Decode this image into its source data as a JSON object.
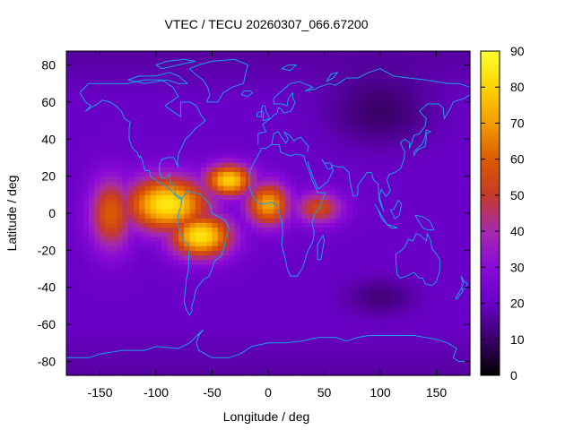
{
  "chart_data": {
    "type": "heatmap",
    "title": "VTEC / TECU 20260307_066.67200",
    "xlabel": "Longitude / deg",
    "ylabel": "Latitude / deg",
    "xlim": [
      -180,
      180
    ],
    "ylim": [
      -87.5,
      87.5
    ],
    "x_ticks": [
      -150,
      -100,
      -50,
      0,
      50,
      100,
      150
    ],
    "y_ticks": [
      -80,
      -60,
      -40,
      -20,
      0,
      20,
      40,
      60,
      80
    ],
    "colorbar": {
      "range": [
        0,
        90
      ],
      "ticks": [
        0,
        10,
        20,
        30,
        40,
        50,
        60,
        70,
        80,
        90
      ],
      "colormap": [
        "#000000",
        "#3a0068",
        "#6a00c8",
        "#8a0ad8",
        "#a52ab0",
        "#c63a28",
        "#dd5a00",
        "#f39c00",
        "#ffd400",
        "#ffff30"
      ]
    },
    "cell_deg": {
      "lon": 5,
      "lat": 2.5
    },
    "features": [
      {
        "name": "equatorial-anomaly-crest-americas",
        "lon": -90,
        "lat": 5,
        "peak_tecu": 85,
        "spread_lon": 38,
        "spread_lat": 15
      },
      {
        "name": "equatorial-anomaly-crest-south-america",
        "lon": -60,
        "lat": -12,
        "peak_tecu": 84,
        "spread_lon": 28,
        "spread_lat": 12
      },
      {
        "name": "equatorial-anomaly-crest-atlantic",
        "lon": -35,
        "lat": 18,
        "peak_tecu": 80,
        "spread_lon": 22,
        "spread_lat": 9
      },
      {
        "name": "west-africa-extension",
        "lon": 0,
        "lat": 5,
        "peak_tecu": 72,
        "spread_lon": 20,
        "spread_lat": 12
      },
      {
        "name": "central-africa-tail",
        "lon": 45,
        "lat": 3,
        "peak_tecu": 55,
        "spread_lon": 22,
        "spread_lat": 9
      },
      {
        "name": "pacific-western-flank",
        "lon": -140,
        "lat": 0,
        "peak_tecu": 60,
        "spread_lon": 20,
        "spread_lat": 20
      },
      {
        "name": "background-minimum-asia",
        "lon": 100,
        "lat": 55,
        "peak_tecu": 10,
        "spread_lon": 45,
        "spread_lat": 18
      },
      {
        "name": "background-minimum-south-indian-ocean",
        "lon": 100,
        "lat": -45,
        "peak_tecu": 12,
        "spread_lon": 30,
        "spread_lat": 10
      }
    ],
    "background_tecu": 20,
    "overlay": "coastlines"
  },
  "colors": {
    "coastline": "#1aa0e6",
    "frame": "#000000"
  }
}
